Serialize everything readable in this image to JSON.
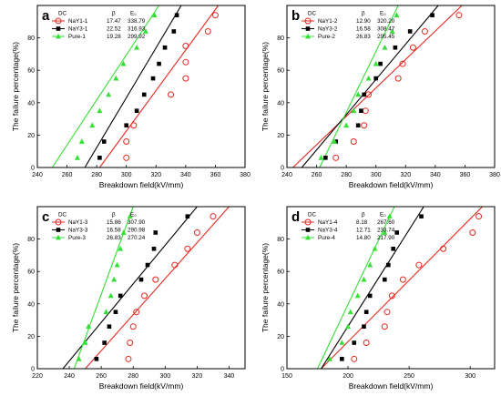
{
  "colors": {
    "red": "#e8271f",
    "black": "#000000",
    "green": "#35e034"
  },
  "chart_data": [
    {
      "type": "scatter",
      "panel_label": "a",
      "xlabel": "Breakdown field(kV/mm)",
      "ylabel": "The failure percentage(%)",
      "xlim": [
        240,
        380
      ],
      "ylim": [
        0,
        100
      ],
      "xticks": [
        240,
        260,
        280,
        300,
        320,
        340,
        360,
        380
      ],
      "yticks": [
        0,
        20,
        40,
        60,
        80
      ],
      "legend": {
        "headers": [
          "DC",
          "β",
          "E₀"
        ],
        "placement": "top-left"
      },
      "series": [
        {
          "name": "NaY1-1",
          "beta": "17.47",
          "e0": "338.79",
          "marker": "circle",
          "color": "red",
          "x": [
            300,
            300,
            305,
            330,
            340,
            340,
            340,
            355,
            360
          ],
          "y": [
            6,
            16,
            26,
            45,
            55,
            65,
            75,
            84,
            94
          ],
          "fit": [
            [
              282,
              0
            ],
            [
              362,
              100
            ]
          ]
        },
        {
          "name": "NaY3-1",
          "beta": "22.52",
          "e0": "316.93",
          "marker": "square",
          "color": "black",
          "x": [
            282,
            285,
            300,
            307,
            312,
            318,
            322,
            326,
            332,
            334
          ],
          "y": [
            6,
            16,
            26,
            35,
            45,
            55,
            64,
            74,
            84,
            94
          ],
          "fit": [
            [
              272,
              0
            ],
            [
              337,
              100
            ]
          ]
        },
        {
          "name": "Pure-1",
          "beta": "19.28",
          "e0": "299.92",
          "marker": "triangle",
          "color": "green",
          "x": [
            267,
            270,
            277,
            282,
            288,
            293,
            298,
            307,
            313,
            319
          ],
          "y": [
            6,
            16,
            26,
            35,
            45,
            55,
            64,
            74,
            84,
            94
          ],
          "fit": [
            [
              250,
              0
            ],
            [
              322,
              100
            ]
          ]
        }
      ]
    },
    {
      "type": "scatter",
      "panel_label": "b",
      "xlabel": "Breakdown field(kV/mm)",
      "ylabel": "The failure percentage(%)",
      "xlim": [
        240,
        380
      ],
      "ylim": [
        0,
        100
      ],
      "xticks": [
        240,
        260,
        280,
        300,
        320,
        340,
        360,
        380
      ],
      "yticks": [
        0,
        20,
        40,
        60,
        80
      ],
      "legend": {
        "headers": [
          "DC",
          "β",
          "E₀"
        ],
        "placement": "top-left"
      },
      "series": [
        {
          "name": "NaY1-2",
          "beta": "12.90",
          "e0": "320.20",
          "marker": "circle",
          "color": "red",
          "x": [
            273,
            285,
            292,
            293,
            295,
            315,
            318,
            325,
            333,
            356
          ],
          "y": [
            6,
            16,
            26,
            35,
            45,
            55,
            64,
            74,
            84,
            94
          ],
          "fit": [
            [
              244,
              0
            ],
            [
              358,
              100
            ]
          ]
        },
        {
          "name": "NaY3-2",
          "beta": "16.58",
          "e0": "308.47",
          "marker": "square",
          "color": "black",
          "x": [
            266,
            273,
            288,
            290,
            292,
            300,
            303,
            313,
            323,
            338
          ],
          "y": [
            6,
            16,
            26,
            35,
            45,
            55,
            64,
            74,
            84,
            94
          ],
          "fit": [
            [
              250,
              0
            ],
            [
              342,
              100
            ]
          ]
        },
        {
          "name": "Pure-2",
          "beta": "26.83",
          "e0": "295.45",
          "marker": "triangle",
          "color": "green",
          "x": [
            263,
            272,
            280,
            285,
            288,
            295,
            300,
            306,
            311,
            314
          ],
          "y": [
            6,
            16,
            26,
            35,
            45,
            55,
            64,
            74,
            84,
            94
          ],
          "fit": [
            [
              262,
              0
            ],
            [
              315,
              100
            ]
          ]
        }
      ]
    },
    {
      "type": "scatter",
      "panel_label": "c",
      "xlabel": "Breakdown field(kV/mm)",
      "ylabel": "The failure percentage(%)",
      "xlim": [
        220,
        350
      ],
      "ylim": [
        0,
        100
      ],
      "xticks": [
        220,
        240,
        260,
        280,
        300,
        320,
        340
      ],
      "yticks": [
        0,
        20,
        40,
        60,
        80
      ],
      "legend": {
        "headers": [
          "DC",
          "β",
          "E₀"
        ],
        "placement": "top-left"
      },
      "series": [
        {
          "name": "NaY1-3",
          "beta": "15.86",
          "e0": "307.90",
          "marker": "circle",
          "color": "red",
          "x": [
            277,
            278,
            280,
            282,
            287,
            294,
            306,
            314,
            320,
            330
          ],
          "y": [
            6,
            16,
            26,
            35,
            45,
            55,
            64,
            74,
            84,
            94
          ],
          "fit": [
            [
              250,
              0
            ],
            [
              340,
              100
            ]
          ]
        },
        {
          "name": "NaY3-3",
          "beta": "16.58",
          "e0": "290.98",
          "marker": "square",
          "color": "black",
          "x": [
            257,
            262,
            265,
            269,
            272,
            285,
            289,
            293,
            294,
            314
          ],
          "y": [
            6,
            16,
            26,
            35,
            45,
            55,
            64,
            74,
            84,
            94
          ],
          "fit": [
            [
              236,
              0
            ],
            [
              320,
              100
            ]
          ]
        },
        {
          "name": "Pure-3",
          "beta": "26.83",
          "e0": "270.24",
          "marker": "triangle",
          "color": "green",
          "x": [
            246,
            250,
            252,
            263,
            266,
            268,
            270,
            272,
            274,
            278
          ],
          "y": [
            6,
            16,
            26,
            35,
            45,
            55,
            64,
            74,
            84,
            94
          ],
          "fit": [
            [
              243,
              0
            ],
            [
              280,
              100
            ]
          ]
        }
      ]
    },
    {
      "type": "scatter",
      "panel_label": "d",
      "xlabel": "Breakdown field(kV/mm)",
      "ylabel": "The failure percentage(%)",
      "xlim": [
        150,
        320
      ],
      "ylim": [
        0,
        100
      ],
      "xticks": [
        150,
        200,
        250,
        300
      ],
      "yticks": [
        0,
        20,
        40,
        60,
        80
      ],
      "legend": {
        "headers": [
          "DC",
          "β",
          "E₀"
        ],
        "placement": "top-left"
      },
      "series": [
        {
          "name": "NaY1-4",
          "beta": "8.18",
          "e0": "267.60",
          "marker": "circle",
          "color": "red",
          "x": [
            205,
            215,
            230,
            232,
            236,
            245,
            258,
            278,
            302,
            307
          ],
          "y": [
            6,
            16,
            26,
            35,
            45,
            55,
            64,
            74,
            84,
            94
          ],
          "fit": [
            [
              178,
              0
            ],
            [
              310,
              100
            ]
          ]
        },
        {
          "name": "NaY3-4",
          "beta": "12.71",
          "e0": "233.74",
          "marker": "square",
          "color": "black",
          "x": [
            195,
            205,
            213,
            215,
            218,
            230,
            233,
            237,
            240,
            260
          ],
          "y": [
            6,
            16,
            26,
            35,
            45,
            55,
            64,
            74,
            84,
            94
          ],
          "fit": [
            [
              178,
              0
            ],
            [
              262,
              100
            ]
          ]
        },
        {
          "name": "Pure-4",
          "beta": "14.80",
          "e0": "217.90",
          "marker": "triangle",
          "color": "green",
          "x": [
            185,
            195,
            200,
            202,
            208,
            213,
            218,
            222,
            230,
            234
          ],
          "y": [
            6,
            16,
            26,
            35,
            45,
            55,
            64,
            74,
            84,
            94
          ],
          "fit": [
            [
              175,
              0
            ],
            [
              238,
              100
            ]
          ]
        }
      ]
    }
  ]
}
